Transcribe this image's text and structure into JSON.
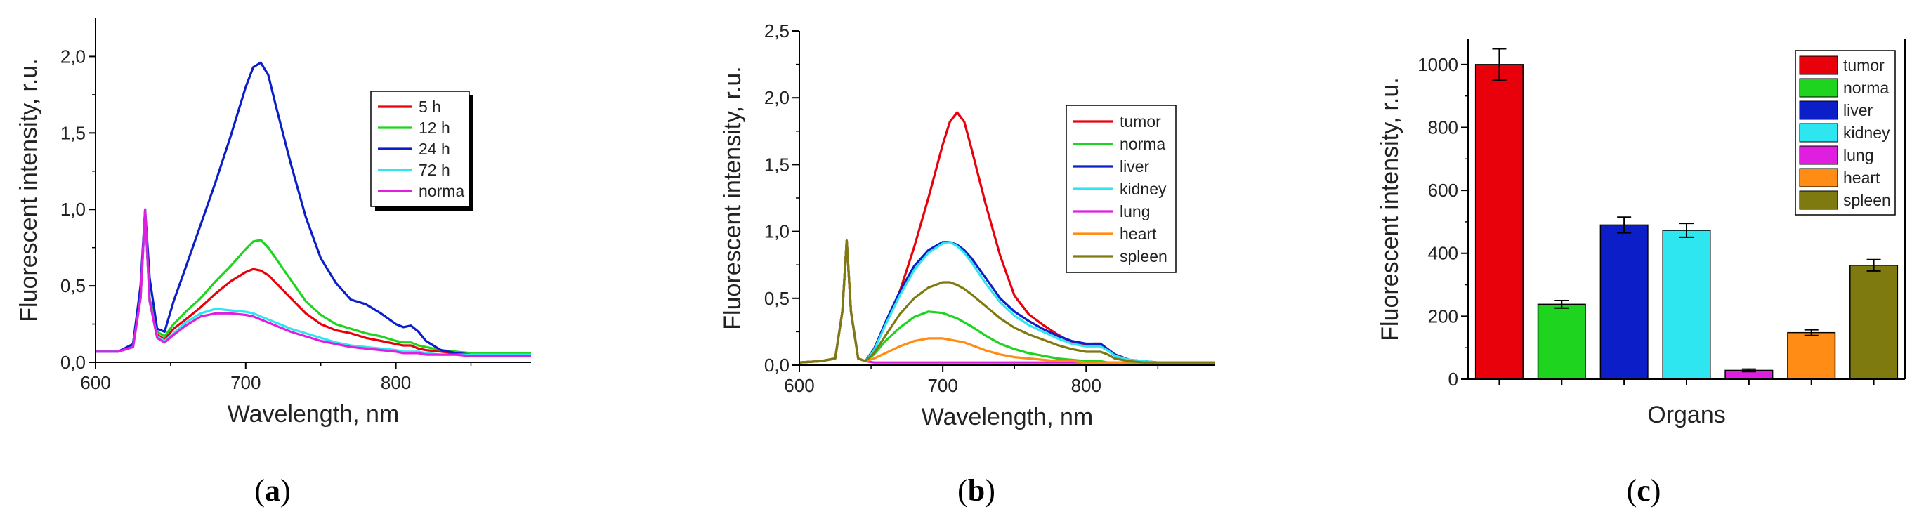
{
  "panel_captions": [
    {
      "open": "(",
      "letter": "a",
      "close": ")"
    },
    {
      "open": "(",
      "letter": "b",
      "close": ")"
    },
    {
      "open": "(",
      "letter": "c",
      "close": ")"
    }
  ],
  "chart_data": [
    {
      "type": "line",
      "xlabel": "Wavelength, nm",
      "ylabel": "Fluorescent intensity, r.u.",
      "xlim": [
        600,
        890
      ],
      "ylim": [
        0,
        2.25
      ],
      "xticks": [
        {
          "value": 600,
          "label": "600"
        },
        {
          "value": 700,
          "label": "700"
        },
        {
          "value": 800,
          "label": "800"
        }
      ],
      "yticks": [
        {
          "value": 0,
          "label": "0,0"
        },
        {
          "value": 0.5,
          "label": "0,5"
        },
        {
          "value": 1.0,
          "label": "1,0"
        },
        {
          "value": 1.5,
          "label": "1,5"
        },
        {
          "value": 2.0,
          "label": "2,0"
        }
      ],
      "x": [
        600,
        615,
        625,
        630,
        633,
        636,
        641,
        646,
        652,
        660,
        670,
        680,
        690,
        700,
        705,
        710,
        715,
        720,
        730,
        740,
        750,
        760,
        770,
        780,
        790,
        800,
        805,
        810,
        815,
        820,
        830,
        840,
        850,
        870,
        890
      ],
      "series": [
        {
          "name": "5 h",
          "color": "#e8000b",
          "values": [
            0.07,
            0.07,
            0.1,
            0.42,
            0.98,
            0.4,
            0.18,
            0.15,
            0.22,
            0.28,
            0.36,
            0.45,
            0.53,
            0.59,
            0.61,
            0.6,
            0.57,
            0.52,
            0.42,
            0.32,
            0.25,
            0.21,
            0.19,
            0.16,
            0.14,
            0.12,
            0.11,
            0.11,
            0.09,
            0.08,
            0.07,
            0.06,
            0.05,
            0.05,
            0.05
          ]
        },
        {
          "name": "12 h",
          "color": "#1ed41e",
          "values": [
            0.07,
            0.07,
            0.11,
            0.45,
            0.98,
            0.42,
            0.2,
            0.17,
            0.25,
            0.33,
            0.42,
            0.53,
            0.63,
            0.74,
            0.79,
            0.8,
            0.75,
            0.68,
            0.54,
            0.4,
            0.31,
            0.25,
            0.22,
            0.19,
            0.17,
            0.14,
            0.13,
            0.13,
            0.11,
            0.1,
            0.08,
            0.07,
            0.06,
            0.06,
            0.06
          ]
        },
        {
          "name": "24 h",
          "color": "#0b1ec8",
          "values": [
            0.07,
            0.07,
            0.12,
            0.5,
            1.0,
            0.55,
            0.22,
            0.2,
            0.4,
            0.62,
            0.9,
            1.18,
            1.48,
            1.8,
            1.93,
            1.96,
            1.88,
            1.68,
            1.3,
            0.95,
            0.68,
            0.52,
            0.41,
            0.38,
            0.32,
            0.25,
            0.23,
            0.24,
            0.2,
            0.14,
            0.08,
            0.06,
            0.05,
            0.05,
            0.05
          ]
        },
        {
          "name": "72 h",
          "color": "#2ee6f0",
          "values": [
            0.07,
            0.07,
            0.1,
            0.42,
            0.98,
            0.4,
            0.17,
            0.14,
            0.19,
            0.26,
            0.32,
            0.35,
            0.34,
            0.33,
            0.32,
            0.3,
            0.28,
            0.26,
            0.22,
            0.19,
            0.16,
            0.13,
            0.11,
            0.1,
            0.09,
            0.08,
            0.07,
            0.07,
            0.07,
            0.06,
            0.05,
            0.05,
            0.05,
            0.05,
            0.05
          ]
        },
        {
          "name": "norma",
          "color": "#e01ee0",
          "values": [
            0.07,
            0.07,
            0.1,
            0.42,
            1.0,
            0.4,
            0.16,
            0.13,
            0.18,
            0.24,
            0.3,
            0.32,
            0.32,
            0.31,
            0.3,
            0.28,
            0.26,
            0.24,
            0.2,
            0.17,
            0.14,
            0.12,
            0.1,
            0.09,
            0.08,
            0.07,
            0.06,
            0.06,
            0.06,
            0.05,
            0.05,
            0.05,
            0.04,
            0.04,
            0.04
          ]
        }
      ]
    },
    {
      "type": "line",
      "xlabel": "Wavelength, nm",
      "ylabel": "Fluorescent intensity, r.u.",
      "xlim": [
        600,
        890
      ],
      "ylim": [
        0,
        2.5
      ],
      "xticks": [
        {
          "value": 600,
          "label": "600"
        },
        {
          "value": 700,
          "label": "700"
        },
        {
          "value": 800,
          "label": "800"
        }
      ],
      "yticks": [
        {
          "value": 0,
          "label": "0,0"
        },
        {
          "value": 0.5,
          "label": "0,5"
        },
        {
          "value": 1.0,
          "label": "1,0"
        },
        {
          "value": 1.5,
          "label": "1,5"
        },
        {
          "value": 2.0,
          "label": "2,0"
        },
        {
          "value": 2.5,
          "label": "2,5"
        }
      ],
      "x": [
        600,
        615,
        625,
        630,
        633,
        636,
        641,
        646,
        652,
        660,
        670,
        680,
        690,
        700,
        705,
        710,
        715,
        720,
        730,
        740,
        750,
        760,
        770,
        780,
        790,
        800,
        805,
        810,
        815,
        820,
        830,
        840,
        850,
        870,
        890
      ],
      "series": [
        {
          "name": "tumor",
          "color": "#e8000b",
          "values": [
            0.02,
            0.03,
            0.05,
            0.4,
            0.93,
            0.4,
            0.05,
            0.03,
            0.12,
            0.3,
            0.55,
            0.88,
            1.25,
            1.65,
            1.82,
            1.89,
            1.82,
            1.62,
            1.2,
            0.82,
            0.52,
            0.38,
            0.3,
            0.23,
            0.17,
            0.15,
            0.16,
            0.16,
            0.12,
            0.08,
            0.04,
            0.03,
            0.02,
            0.02,
            0.02
          ]
        },
        {
          "name": "norma",
          "color": "#1ed41e",
          "values": [
            0.02,
            0.03,
            0.05,
            0.4,
            0.93,
            0.4,
            0.05,
            0.03,
            0.08,
            0.18,
            0.28,
            0.36,
            0.4,
            0.39,
            0.37,
            0.35,
            0.32,
            0.29,
            0.22,
            0.16,
            0.12,
            0.09,
            0.07,
            0.05,
            0.04,
            0.03,
            0.03,
            0.03,
            0.02,
            0.02,
            0.02,
            0.02,
            0.01,
            0.01,
            0.01
          ]
        },
        {
          "name": "liver",
          "color": "#0b1ec8",
          "values": [
            0.02,
            0.03,
            0.05,
            0.4,
            0.93,
            0.4,
            0.05,
            0.03,
            0.12,
            0.32,
            0.55,
            0.74,
            0.86,
            0.92,
            0.92,
            0.9,
            0.86,
            0.8,
            0.65,
            0.5,
            0.4,
            0.33,
            0.27,
            0.22,
            0.18,
            0.16,
            0.16,
            0.16,
            0.12,
            0.08,
            0.04,
            0.03,
            0.02,
            0.02,
            0.02
          ]
        },
        {
          "name": "kidney",
          "color": "#2ee6f0",
          "values": [
            0.02,
            0.03,
            0.05,
            0.4,
            0.93,
            0.4,
            0.05,
            0.03,
            0.11,
            0.3,
            0.52,
            0.71,
            0.84,
            0.91,
            0.92,
            0.89,
            0.84,
            0.77,
            0.61,
            0.47,
            0.37,
            0.3,
            0.25,
            0.2,
            0.16,
            0.14,
            0.14,
            0.14,
            0.11,
            0.07,
            0.04,
            0.03,
            0.02,
            0.02,
            0.02
          ]
        },
        {
          "name": "lung",
          "color": "#e01ee0",
          "values": [
            0.02,
            0.03,
            0.05,
            0.4,
            0.93,
            0.4,
            0.05,
            0.03,
            0.02,
            0.02,
            0.02,
            0.02,
            0.02,
            0.02,
            0.02,
            0.02,
            0.02,
            0.02,
            0.02,
            0.02,
            0.02,
            0.02,
            0.02,
            0.02,
            0.02,
            0.02,
            0.02,
            0.02,
            0.02,
            0.02,
            0.01,
            0.01,
            0.01,
            0.01,
            0.01
          ]
        },
        {
          "name": "heart",
          "color": "#ff8c14",
          "values": [
            0.02,
            0.03,
            0.05,
            0.4,
            0.93,
            0.4,
            0.05,
            0.03,
            0.05,
            0.09,
            0.14,
            0.18,
            0.2,
            0.2,
            0.19,
            0.18,
            0.17,
            0.15,
            0.11,
            0.08,
            0.06,
            0.05,
            0.04,
            0.03,
            0.03,
            0.02,
            0.02,
            0.02,
            0.02,
            0.02,
            0.01,
            0.01,
            0.01,
            0.01,
            0.01
          ]
        },
        {
          "name": "spleen",
          "color": "#7e7a10",
          "values": [
            0.02,
            0.03,
            0.05,
            0.4,
            0.93,
            0.4,
            0.05,
            0.03,
            0.09,
            0.22,
            0.38,
            0.5,
            0.58,
            0.62,
            0.62,
            0.6,
            0.57,
            0.53,
            0.44,
            0.35,
            0.28,
            0.23,
            0.19,
            0.15,
            0.12,
            0.1,
            0.1,
            0.1,
            0.08,
            0.05,
            0.03,
            0.02,
            0.02,
            0.02,
            0.02
          ]
        }
      ]
    },
    {
      "type": "bar",
      "xlabel": "Organs",
      "ylabel": "Fluorescent intensity, r.u.",
      "ylim": [
        0,
        1080
      ],
      "yticks": [
        {
          "value": 0,
          "label": "0"
        },
        {
          "value": 200,
          "label": "200"
        },
        {
          "value": 400,
          "label": "400"
        },
        {
          "value": 600,
          "label": "600"
        },
        {
          "value": 800,
          "label": "800"
        },
        {
          "value": 1000,
          "label": "1000"
        }
      ],
      "categories": [
        "tumor",
        "norma",
        "liver",
        "kidney",
        "lung",
        "heart",
        "spleen"
      ],
      "values": [
        1000,
        238,
        490,
        473,
        28,
        148,
        362
      ],
      "errors": [
        50,
        12,
        25,
        22,
        4,
        9,
        18
      ],
      "colors": [
        "#e8000b",
        "#1ed41e",
        "#0b1ec8",
        "#2ee6f0",
        "#e01ee0",
        "#ff8c14",
        "#7e7a10"
      ]
    }
  ]
}
